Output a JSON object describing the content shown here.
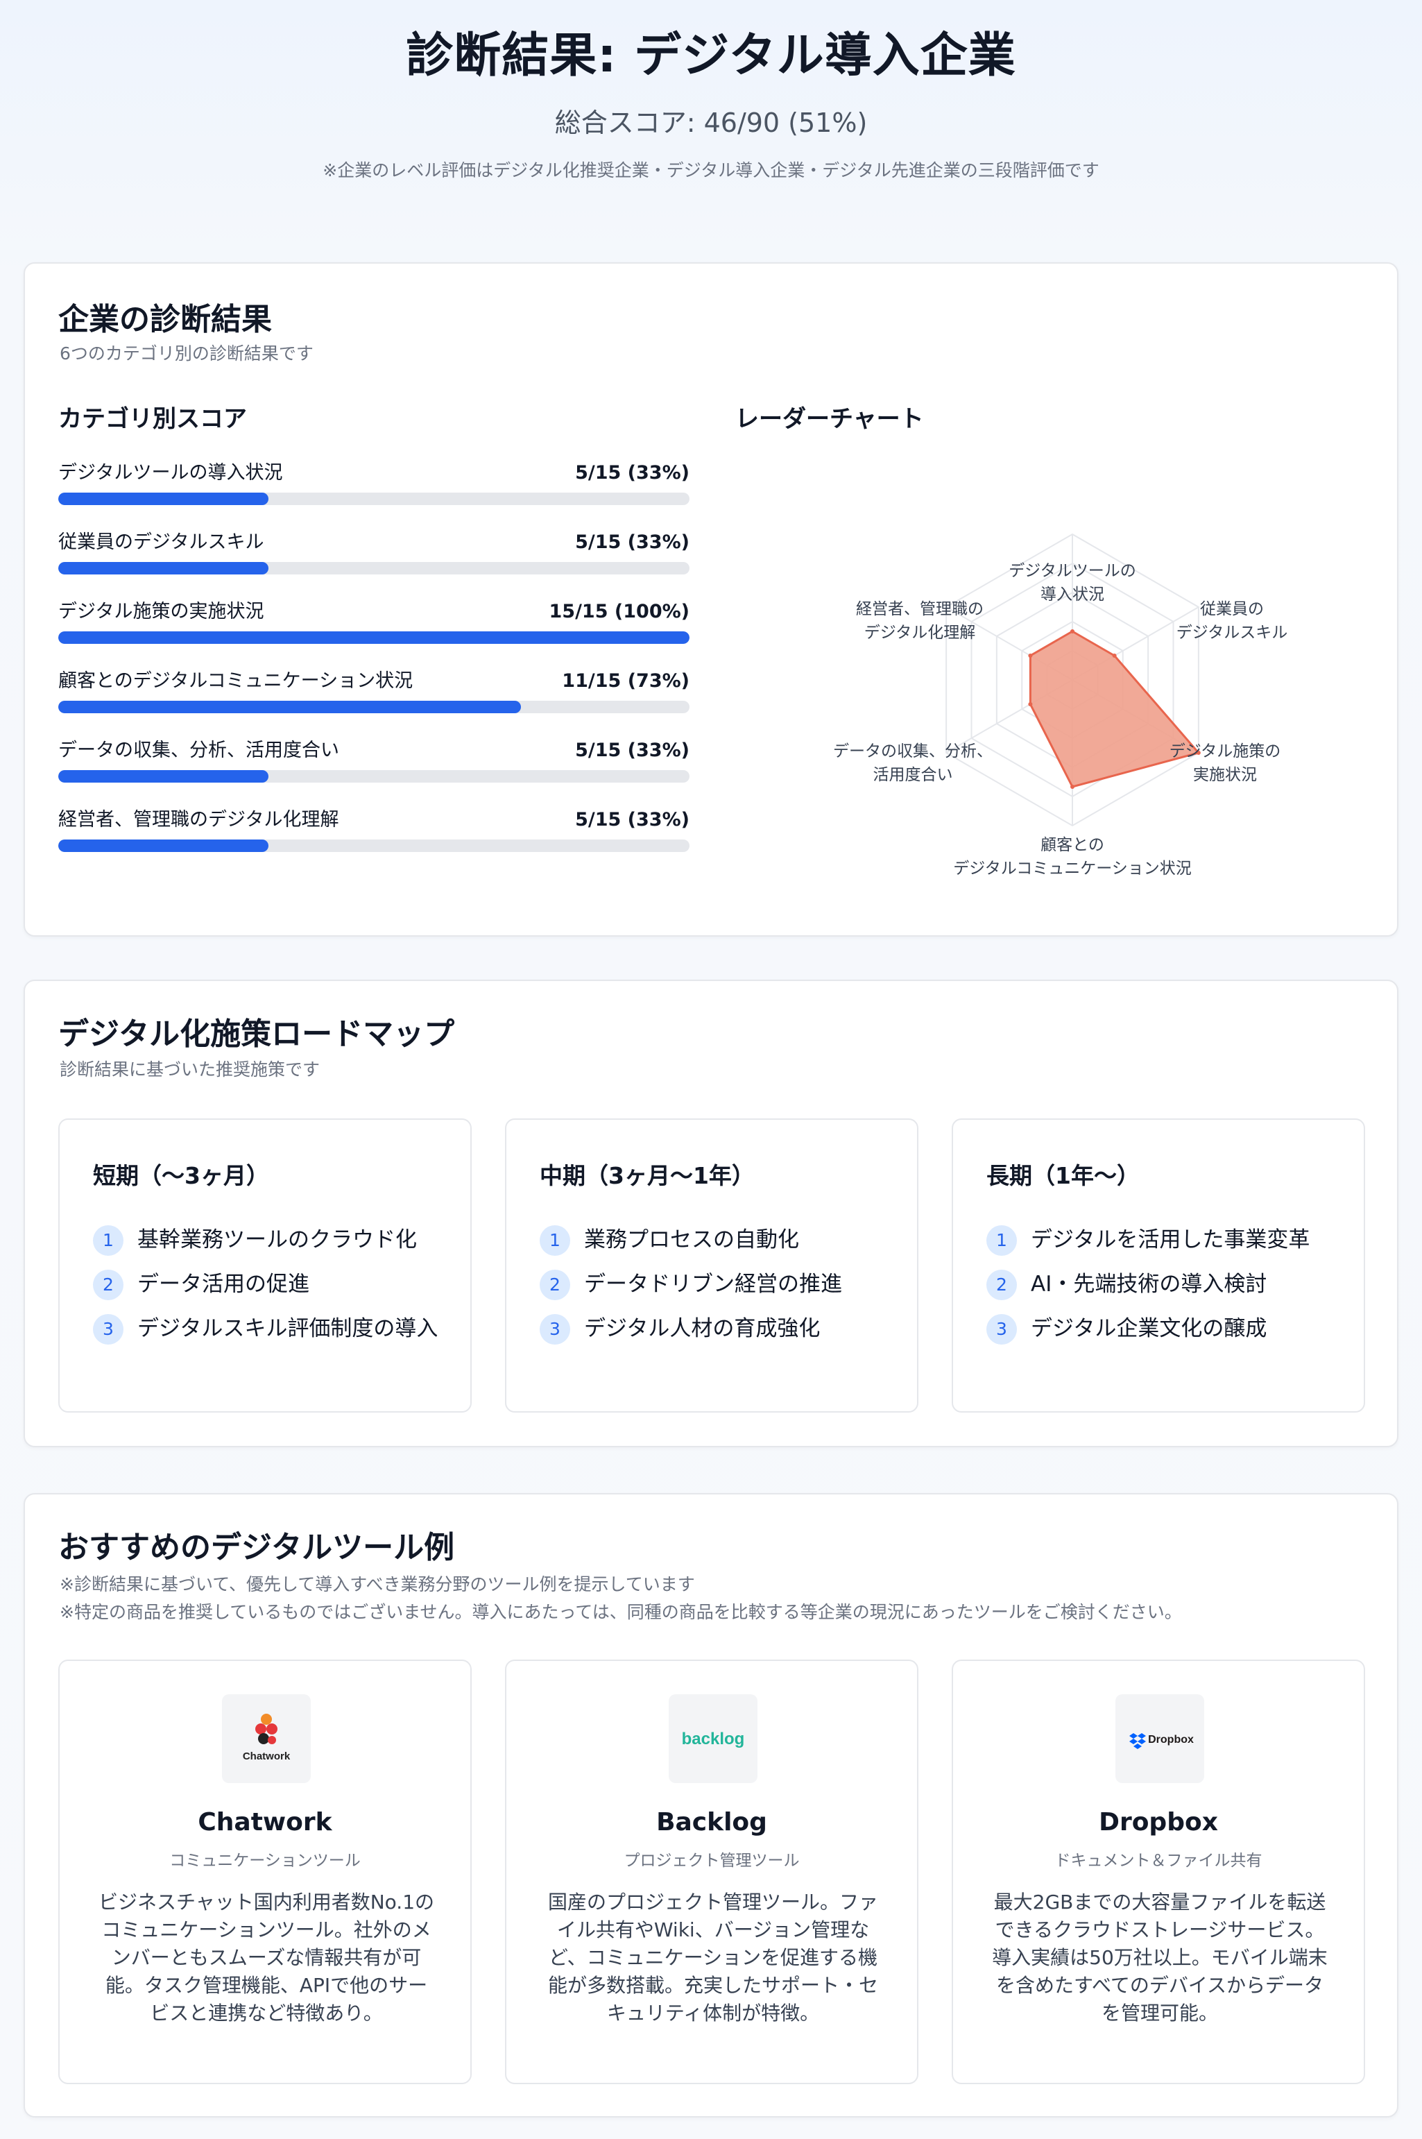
{
  "header": {
    "title": "診断結果: デジタル導入企業",
    "score": "総合スコア: 46/90 (51%)",
    "note": "※企業のレベル評価はデジタル化推奨企業・デジタル導入企業・デジタル先進企業の三段階評価です"
  },
  "diagnosis": {
    "title": "企業の診断結果",
    "subtitle": "6つのカテゴリ別の診断結果です",
    "scores_title": "カテゴリ別スコア",
    "radar_title": "レーダーチャート",
    "categories": [
      {
        "label": "デジタルツールの導入状況",
        "value_text": "5/15 (33%)",
        "fraction": 0.333
      },
      {
        "label": "従業員のデジタルスキル",
        "value_text": "5/15 (33%)",
        "fraction": 0.333
      },
      {
        "label": "デジタル施策の実施状況",
        "value_text": "15/15 (100%)",
        "fraction": 1.0
      },
      {
        "label": "顧客とのデジタルコミュニケーション状況",
        "value_text": "11/15 (73%)",
        "fraction": 0.733
      },
      {
        "label": "データの収集、分析、活用度合い",
        "value_text": "5/15 (33%)",
        "fraction": 0.333
      },
      {
        "label": "経営者、管理職のデジタル化理解",
        "value_text": "5/15 (33%)",
        "fraction": 0.333
      }
    ]
  },
  "chart_data": {
    "type": "radar",
    "axes": [
      [
        "デジタルツールの",
        "導入状況"
      ],
      [
        "従業員の",
        "デジタルスキル"
      ],
      [
        "デジタル施策の",
        "実施状況"
      ],
      [
        "顧客との",
        "デジタルコミュニケーション状況"
      ],
      [
        "データの収集、分析、",
        "活用度合い"
      ],
      [
        "経営者、管理職の",
        "デジタル化理解"
      ]
    ],
    "values": [
      5,
      5,
      15,
      11,
      5,
      5
    ],
    "max": 15,
    "levels": 5,
    "fill_color": "#f0a08c",
    "stroke_color": "#e8654d"
  },
  "roadmap": {
    "title": "デジタル化施策ロードマップ",
    "subtitle": "診断結果に基づいた推奨施策です",
    "phases": [
      {
        "title": "短期（〜3ヶ月）",
        "items": [
          {
            "n": "1",
            "text": "基幹業務ツールのクラウド化"
          },
          {
            "n": "2",
            "text": "データ活用の促進"
          },
          {
            "n": "3",
            "text": "デジタルスキル評価制度の導入"
          }
        ]
      },
      {
        "title": "中期（3ヶ月〜1年）",
        "items": [
          {
            "n": "1",
            "text": "業務プロセスの自動化"
          },
          {
            "n": "2",
            "text": "データドリブン経営の推進"
          },
          {
            "n": "3",
            "text": "デジタル人材の育成強化"
          }
        ]
      },
      {
        "title": "長期（1年〜）",
        "items": [
          {
            "n": "1",
            "text": "デジタルを活用した事業変革"
          },
          {
            "n": "2",
            "text": "AI・先端技術の導入検討"
          },
          {
            "n": "3",
            "text": "デジタル企業文化の醸成"
          }
        ]
      }
    ]
  },
  "tools": {
    "title": "おすすめのデジタルツール例",
    "subtitle_1": "※診断結果に基づいて、優先して導入すべき業務分野のツール例を提示しています",
    "subtitle_2": "※特定の商品を推奨しているものではございません。導入にあたっては、同種の商品を比較する等企業の現況にあったツールをご検討ください。",
    "items": [
      {
        "logo_text": "Chatwork",
        "name": "Chatwork",
        "category": "コミュニケーションツール",
        "desc": "ビジネスチャット国内利用者数No.1のコミュニケーションツール。社外のメンバーともスムーズな情報共有が可能。タスク管理機能、APIで他のサービスと連携など特徴あり。"
      },
      {
        "logo_text": "backlog",
        "name": "Backlog",
        "category": "プロジェクト管理ツール",
        "desc": "国産のプロジェクト管理ツール。ファイル共有やWiki、バージョン管理など、コミュニケーションを促進する機能が多数搭載。充実したサポート・セキュリティ体制が特徴。"
      },
      {
        "logo_text": "Dropbox",
        "name": "Dropbox",
        "category": "ドキュメント＆ファイル共有",
        "desc": "最大2GBまでの大容量ファイルを転送できるクラウドストレージサービス。導入実績は50万社以上。モバイル端末を含めたすべてのデバイスからデータを管理可能。"
      }
    ]
  },
  "colors": {
    "accent": "#2563eb",
    "track": "#e5e7eb",
    "badge_bg": "#dbeafe"
  }
}
